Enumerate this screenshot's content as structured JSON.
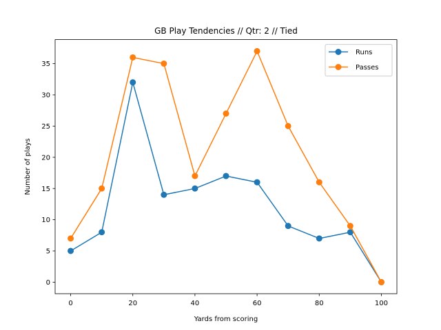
{
  "chart_data": {
    "type": "line",
    "title": "GB Play Tendencies // Qtr: 2 // Tied",
    "xlabel": "Yards from scoring",
    "ylabel": "Number of plays",
    "x": [
      0,
      10,
      20,
      30,
      40,
      50,
      60,
      70,
      80,
      90,
      100
    ],
    "series": [
      {
        "name": "Runs",
        "color": "#1f77b4",
        "values": [
          5,
          8,
          32,
          14,
          15,
          17,
          16,
          9,
          7,
          8,
          0
        ]
      },
      {
        "name": "Passes",
        "color": "#ff7f0e",
        "values": [
          7,
          15,
          36,
          35,
          17,
          27,
          37,
          25,
          16,
          9,
          0
        ]
      }
    ],
    "xlim": [
      -5,
      105
    ],
    "ylim": [
      -1.85,
      38.85
    ],
    "xticks": [
      0,
      20,
      40,
      60,
      80,
      100
    ],
    "yticks": [
      0,
      5,
      10,
      15,
      20,
      25,
      30,
      35
    ],
    "grid": false,
    "legend_position": "top-right",
    "marker": "circle"
  }
}
